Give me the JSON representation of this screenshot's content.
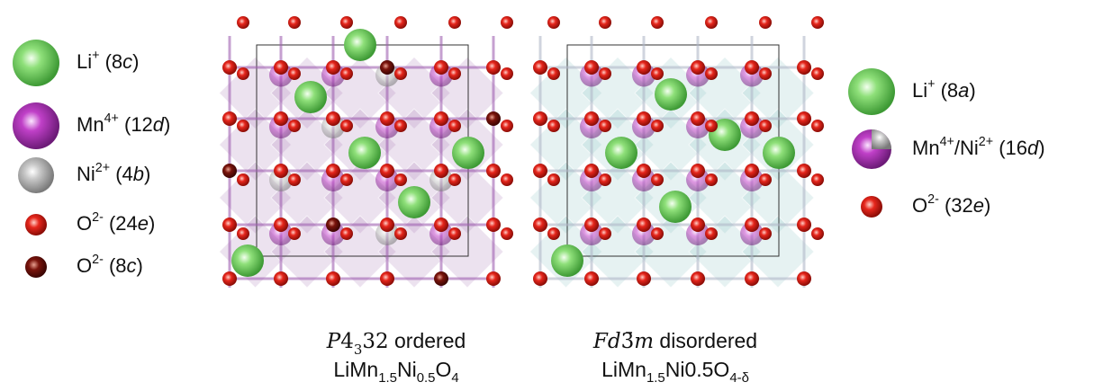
{
  "legend_left": [
    {
      "atom": "li",
      "parts": [
        {
          "text": "Li"
        },
        {
          "text": "+",
          "style": "sup"
        },
        {
          "text": " (8"
        },
        {
          "text": "c",
          "style": "italic"
        },
        {
          "text": ")"
        }
      ]
    },
    {
      "atom": "mn",
      "parts": [
        {
          "text": "Mn"
        },
        {
          "text": "4+",
          "style": "sup"
        },
        {
          "text": " (12"
        },
        {
          "text": "d",
          "style": "italic"
        },
        {
          "text": ")"
        }
      ]
    },
    {
      "atom": "ni",
      "parts": [
        {
          "text": "Ni"
        },
        {
          "text": "2+",
          "style": "sup"
        },
        {
          "text": " (4"
        },
        {
          "text": "b",
          "style": "italic"
        },
        {
          "text": ")"
        }
      ]
    },
    {
      "atom": "o",
      "parts": [
        {
          "text": "O"
        },
        {
          "text": "2-",
          "style": "sup"
        },
        {
          "text": " (24"
        },
        {
          "text": "e",
          "style": "italic"
        },
        {
          "text": ")"
        }
      ]
    },
    {
      "atom": "o8",
      "parts": [
        {
          "text": "O"
        },
        {
          "text": "2-",
          "style": "sup"
        },
        {
          "text": " (8"
        },
        {
          "text": "c",
          "style": "italic"
        },
        {
          "text": ")"
        }
      ]
    }
  ],
  "legend_right": [
    {
      "atom": "li",
      "parts": [
        {
          "text": "Li"
        },
        {
          "text": "+",
          "style": "sup"
        },
        {
          "text": " (8"
        },
        {
          "text": "a",
          "style": "italic"
        },
        {
          "text": ")"
        }
      ]
    },
    {
      "atom": "mnni",
      "parts": [
        {
          "text": "Mn"
        },
        {
          "text": "4+",
          "style": "sup"
        },
        {
          "text": "/Ni"
        },
        {
          "text": "2+",
          "style": "sup"
        },
        {
          "text": " (16"
        },
        {
          "text": "d",
          "style": "italic"
        },
        {
          "text": ")"
        }
      ]
    },
    {
      "atom": "o",
      "parts": [
        {
          "text": "O"
        },
        {
          "text": "2-",
          "style": "sup"
        },
        {
          "text": " (32"
        },
        {
          "text": "e",
          "style": "italic"
        },
        {
          "text": ")"
        }
      ]
    }
  ],
  "captions": [
    {
      "line1": [
        {
          "text": "P",
          "style": "italic-serif"
        },
        {
          "text": "4",
          "style": "serif"
        },
        {
          "text": "3",
          "style": "sub-serif"
        },
        {
          "text": "32",
          "style": "serif"
        },
        {
          "text": " ordered"
        }
      ],
      "line2": [
        {
          "text": "LiMn"
        },
        {
          "text": "1.5",
          "style": "sub"
        },
        {
          "text": "Ni"
        },
        {
          "text": "0.5",
          "style": "sub"
        },
        {
          "text": "O"
        },
        {
          "text": "4",
          "style": "sub"
        }
      ]
    },
    {
      "line1": [
        {
          "text": "Fd",
          "style": "italic-serif"
        },
        {
          "text": "3̄",
          "style": "serif"
        },
        {
          "text": "m",
          "style": "italic-serif"
        },
        {
          "text": " disordered"
        }
      ],
      "line2": [
        {
          "text": "LiMn"
        },
        {
          "text": "1.5",
          "style": "sub"
        },
        {
          "text": "Ni"
        },
        {
          "text": "0.5"
        },
        {
          "text": "O"
        },
        {
          "text": "4-δ",
          "style": "sub"
        }
      ]
    }
  ]
}
